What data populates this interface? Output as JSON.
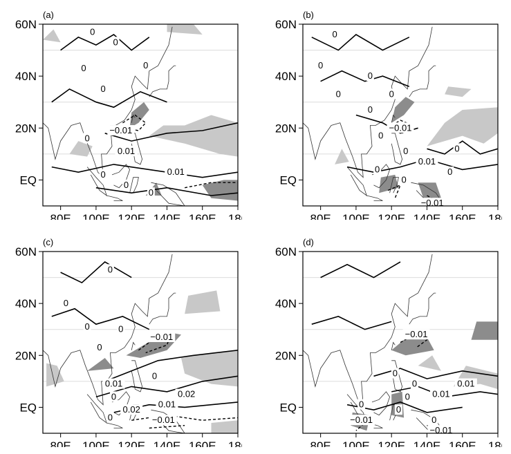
{
  "figure": {
    "panels": [
      {
        "id": "a",
        "label": "(a)",
        "y_ticks": [
          "60N",
          "40N",
          "20N",
          "EQ"
        ],
        "x_ticks": [
          "80E",
          "100E",
          "120E",
          "140E",
          "160E",
          "180"
        ],
        "contour_labels": [
          {
            "text": "0",
            "lon": 98,
            "lat": 57
          },
          {
            "text": "0",
            "lon": 111,
            "lat": 53
          },
          {
            "text": "0",
            "lon": 93,
            "lat": 43
          },
          {
            "text": "0",
            "lon": 104,
            "lat": 35
          },
          {
            "text": "0",
            "lon": 128,
            "lat": 44
          },
          {
            "text": "−0.01",
            "lon": 114,
            "lat": 19
          },
          {
            "text": "0",
            "lon": 95,
            "lat": 16
          },
          {
            "text": "0.01",
            "lon": 117,
            "lat": 11
          },
          {
            "text": "0.01",
            "lon": 145,
            "lat": 3
          },
          {
            "text": "0",
            "lon": 104,
            "lat": 2
          },
          {
            "text": "0",
            "lon": 117,
            "lat": -2
          },
          {
            "text": "0",
            "lon": 131,
            "lat": -5
          }
        ]
      },
      {
        "id": "b",
        "label": "(b)",
        "y_ticks": [
          "60N",
          "40N",
          "20N",
          "EQ"
        ],
        "x_ticks": [
          "80E",
          "100E",
          "120E",
          "140E",
          "160E",
          "180"
        ],
        "contour_labels": [
          {
            "text": "0",
            "lon": 88,
            "lat": 56
          },
          {
            "text": "0",
            "lon": 80,
            "lat": 44
          },
          {
            "text": "0",
            "lon": 108,
            "lat": 40
          },
          {
            "text": "0",
            "lon": 90,
            "lat": 33
          },
          {
            "text": "0",
            "lon": 120,
            "lat": 33
          },
          {
            "text": "0",
            "lon": 108,
            "lat": 27
          },
          {
            "text": "−0.01",
            "lon": 125,
            "lat": 20
          },
          {
            "text": "0",
            "lon": 114,
            "lat": 17
          },
          {
            "text": "0",
            "lon": 128,
            "lat": 11
          },
          {
            "text": "0.01",
            "lon": 140,
            "lat": 7
          },
          {
            "text": "0",
            "lon": 157,
            "lat": 12
          },
          {
            "text": "0",
            "lon": 112,
            "lat": 4
          },
          {
            "text": "0",
            "lon": 153,
            "lat": 3
          },
          {
            "text": "0",
            "lon": 127,
            "lat": 0
          },
          {
            "text": "−0.01",
            "lon": 143,
            "lat": -9
          }
        ]
      },
      {
        "id": "c",
        "label": "(c)",
        "y_ticks": [
          "60N",
          "40N",
          "20N",
          "EQ"
        ],
        "x_ticks": [
          "80E",
          "100E",
          "120E",
          "140E",
          "160E",
          "180"
        ],
        "contour_labels": [
          {
            "text": "0",
            "lon": 108,
            "lat": 53
          },
          {
            "text": "0",
            "lon": 83,
            "lat": 40
          },
          {
            "text": "0",
            "lon": 95,
            "lat": 31
          },
          {
            "text": "0",
            "lon": 114,
            "lat": 30
          },
          {
            "text": "0",
            "lon": 102,
            "lat": 23
          },
          {
            "text": "−0.01",
            "lon": 137,
            "lat": 27
          },
          {
            "text": "0",
            "lon": 133,
            "lat": 12
          },
          {
            "text": "0.01",
            "lon": 110,
            "lat": 9
          },
          {
            "text": "0",
            "lon": 110,
            "lat": 4
          },
          {
            "text": "0.02",
            "lon": 151,
            "lat": 5
          },
          {
            "text": "0.02",
            "lon": 120,
            "lat": -1
          },
          {
            "text": "0.01",
            "lon": 140,
            "lat": 1
          },
          {
            "text": "−0.01",
            "lon": 138,
            "lat": -5
          },
          {
            "text": "0",
            "lon": 108,
            "lat": -4
          }
        ]
      },
      {
        "id": "d",
        "label": "(d)",
        "y_ticks": [
          "60N",
          "40N",
          "20N",
          "EQ"
        ],
        "x_ticks": [
          "80E",
          "100E",
          "120E",
          "140E",
          "160E",
          "180"
        ],
        "contour_labels": [
          {
            "text": "−0.01",
            "lon": 134,
            "lat": 28
          },
          {
            "text": "0",
            "lon": 122,
            "lat": 13
          },
          {
            "text": "0",
            "lon": 133,
            "lat": 9
          },
          {
            "text": "0.01",
            "lon": 162,
            "lat": 9
          },
          {
            "text": "0.01",
            "lon": 148,
            "lat": 5
          },
          {
            "text": "0",
            "lon": 129,
            "lat": 4
          },
          {
            "text": "0",
            "lon": 103,
            "lat": 1
          },
          {
            "text": "0",
            "lon": 124,
            "lat": -1
          },
          {
            "text": "−0.01",
            "lon": 103,
            "lat": -5
          },
          {
            "text": "0",
            "lon": 144,
            "lat": -5
          },
          {
            "text": "−0.01",
            "lon": 148,
            "lat": -9
          }
        ]
      }
    ]
  },
  "colors": {
    "land_line": "#333333",
    "contour_solid": "#000000",
    "contour_dashed": "#000000",
    "shade_light": "#c8c8c8",
    "shade_dark": "#8c8c8c",
    "gridline": "#dcdcdc"
  }
}
